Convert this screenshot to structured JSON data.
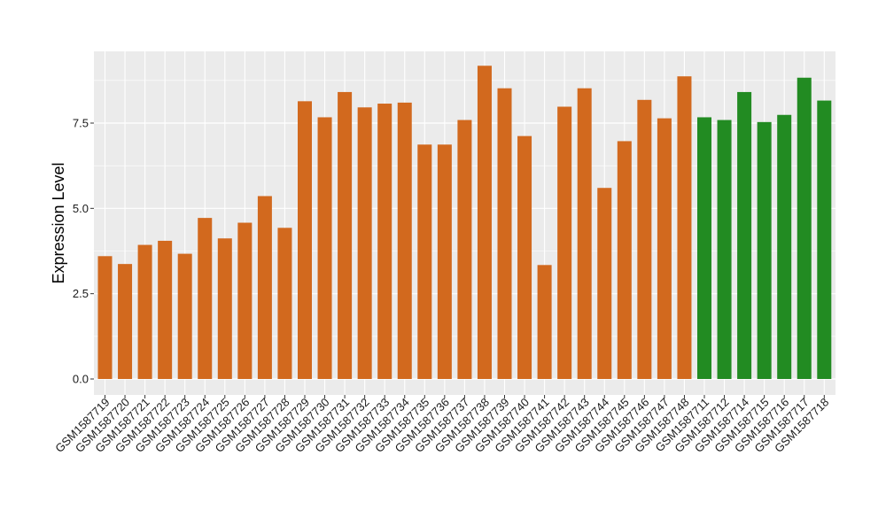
{
  "chart_data": {
    "type": "bar",
    "title": "",
    "xlabel": "",
    "ylabel": "Expression Level",
    "ylim": [
      0,
      9.7
    ],
    "yticks": [
      0.0,
      2.5,
      5.0,
      7.5
    ],
    "ytick_labels": [
      "0.0",
      "2.5",
      "5.0",
      "7.5"
    ],
    "grid": true,
    "legend": "none",
    "colors": {
      "group_a": "#D2691E",
      "group_b": "#228B22",
      "panel_bg": "#EBEBEB",
      "grid": "#FFFFFF"
    },
    "categories": [
      "GSM1587719",
      "GSM1587720",
      "GSM1587721",
      "GSM1587722",
      "GSM1587723",
      "GSM1587724",
      "GSM1587725",
      "GSM1587726",
      "GSM1587727",
      "GSM1587728",
      "GSM1587729",
      "GSM1587730",
      "GSM1587731",
      "GSM1587732",
      "GSM1587733",
      "GSM1587734",
      "GSM1587735",
      "GSM1587736",
      "GSM1587737",
      "GSM1587738",
      "GSM1587739",
      "GSM1587740",
      "GSM1587741",
      "GSM1587742",
      "GSM1587743",
      "GSM1587744",
      "GSM1587745",
      "GSM1587746",
      "GSM1587747",
      "GSM1587748",
      "GSM1587711",
      "GSM1587712",
      "GSM1587714",
      "GSM1587715",
      "GSM1587716",
      "GSM1587717",
      "GSM1587718"
    ],
    "values": [
      3.6,
      3.37,
      3.93,
      4.05,
      3.67,
      4.72,
      4.12,
      4.58,
      5.36,
      4.43,
      8.14,
      7.67,
      8.41,
      7.96,
      8.07,
      8.1,
      6.87,
      6.87,
      7.59,
      9.18,
      8.52,
      7.12,
      3.34,
      7.98,
      8.52,
      5.6,
      6.97,
      8.18,
      7.64,
      8.87,
      7.67,
      7.59,
      8.41,
      7.53,
      7.74,
      8.83,
      8.16
    ],
    "groups": [
      "a",
      "a",
      "a",
      "a",
      "a",
      "a",
      "a",
      "a",
      "a",
      "a",
      "a",
      "a",
      "a",
      "a",
      "a",
      "a",
      "a",
      "a",
      "a",
      "a",
      "a",
      "a",
      "a",
      "a",
      "a",
      "a",
      "a",
      "a",
      "a",
      "a",
      "b",
      "b",
      "b",
      "b",
      "b",
      "b",
      "b"
    ]
  }
}
